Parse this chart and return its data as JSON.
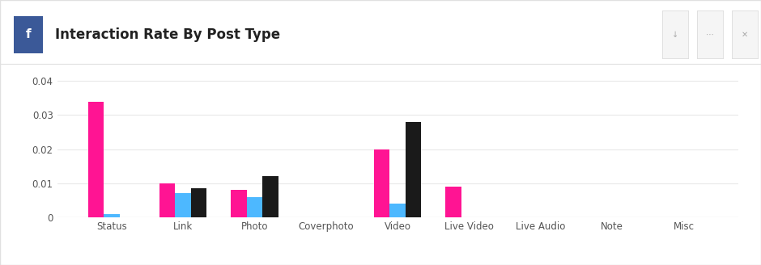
{
  "title": "Interaction Rate By Post Type",
  "categories": [
    "Status",
    "Link",
    "Photo",
    "Coverphoto",
    "Video",
    "Live Video",
    "Live Audio",
    "Note",
    "Misc"
  ],
  "series": {
    "T-Mobile": [
      0.034,
      0.01,
      0.008,
      0.0,
      0.02,
      0.009,
      0.0,
      0.0,
      0.0
    ],
    "AT&T": [
      0.001,
      0.007,
      0.006,
      0.0,
      0.004,
      0.0,
      0.0,
      0.0,
      0.0
    ],
    "Verizon": [
      0.0,
      0.0085,
      0.012,
      0.0,
      0.028,
      0.0,
      0.0,
      0.0,
      0.0
    ]
  },
  "colors": {
    "T-Mobile": "#FF1493",
    "AT&T": "#4DB8FF",
    "Verizon": "#1a1a1a"
  },
  "ylim": [
    0,
    0.042
  ],
  "yticks": [
    0,
    0.01,
    0.02,
    0.03,
    0.04
  ],
  "ytick_labels": [
    "0",
    "0.01",
    "0.02",
    "0.03",
    "0.04"
  ],
  "bg_color": "#ffffff",
  "grid_color": "#e8e8e8",
  "title_fontsize": 12,
  "tick_fontsize": 8.5,
  "legend_fontsize": 9,
  "bar_width": 0.22,
  "facebook_blue": "#3b5998",
  "icon_text": "f",
  "outer_border_color": "#e0e0e0"
}
